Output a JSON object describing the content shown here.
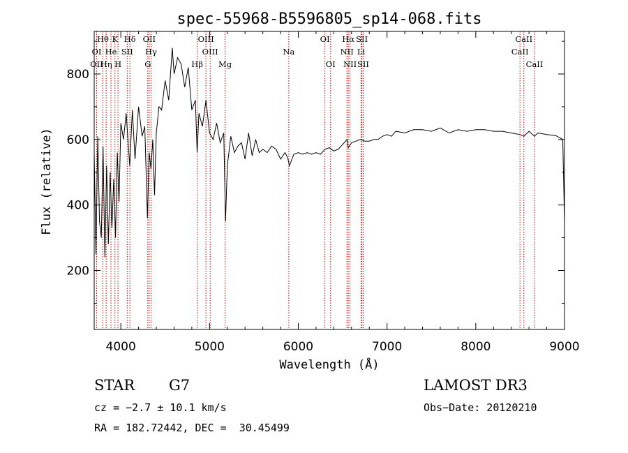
{
  "chart_data": {
    "type": "line",
    "title": "spec-55968-B5596805_sp14-068.fits",
    "xlabel": "Wavelength (Å)",
    "ylabel": "Flux (relative)",
    "xlim": [
      3700,
      9000
    ],
    "ylim": [
      20,
      930
    ],
    "xticks": [
      4000,
      5000,
      6000,
      7000,
      8000,
      9000
    ],
    "yticks": [
      200,
      400,
      600,
      800
    ],
    "series": [
      {
        "name": "spectrum",
        "x": [
          3700,
          3720,
          3740,
          3760,
          3780,
          3800,
          3820,
          3840,
          3860,
          3880,
          3900,
          3920,
          3940,
          3960,
          3980,
          4000,
          4030,
          4060,
          4100,
          4130,
          4160,
          4200,
          4240,
          4270,
          4300,
          4320,
          4340,
          4360,
          4380,
          4400,
          4430,
          4460,
          4500,
          4540,
          4580,
          4600,
          4640,
          4680,
          4720,
          4760,
          4800,
          4840,
          4860,
          4880,
          4920,
          4960,
          5000,
          5040,
          5080,
          5120,
          5160,
          5180,
          5200,
          5240,
          5280,
          5320,
          5360,
          5400,
          5440,
          5480,
          5520,
          5560,
          5600,
          5650,
          5700,
          5750,
          5800,
          5850,
          5880,
          5900,
          5950,
          6000,
          6050,
          6100,
          6150,
          6200,
          6250,
          6300,
          6350,
          6400,
          6450,
          6500,
          6550,
          6563,
          6600,
          6650,
          6700,
          6750,
          6800,
          6850,
          6900,
          6950,
          7000,
          7050,
          7100,
          7200,
          7300,
          7400,
          7500,
          7600,
          7700,
          7800,
          7900,
          8000,
          8100,
          8200,
          8300,
          8400,
          8500,
          8542,
          8600,
          8662,
          8700,
          8800,
          8900,
          8980,
          9000
        ],
        "y": [
          560,
          250,
          610,
          350,
          300,
          580,
          240,
          520,
          280,
          500,
          330,
          480,
          300,
          560,
          410,
          650,
          600,
          680,
          520,
          690,
          540,
          700,
          610,
          640,
          360,
          560,
          510,
          600,
          430,
          620,
          700,
          690,
          780,
          720,
          880,
          800,
          850,
          830,
          760,
          820,
          690,
          720,
          560,
          680,
          640,
          720,
          620,
          600,
          650,
          590,
          620,
          350,
          520,
          610,
          560,
          580,
          590,
          540,
          620,
          550,
          600,
          560,
          570,
          560,
          580,
          570,
          540,
          560,
          545,
          520,
          555,
          560,
          555,
          560,
          555,
          560,
          555,
          570,
          575,
          565,
          570,
          585,
          600,
          575,
          590,
          595,
          600,
          595,
          595,
          600,
          600,
          610,
          615,
          610,
          625,
          620,
          630,
          630,
          625,
          635,
          620,
          630,
          625,
          630,
          630,
          625,
          625,
          620,
          615,
          610,
          625,
          610,
          620,
          615,
          612,
          600,
          350
        ]
      }
    ],
    "line_ids": [
      {
        "label": "Hθ",
        "x": 3798,
        "row": 0
      },
      {
        "label": "K",
        "x": 3934,
        "row": 0
      },
      {
        "label": "Hδ",
        "x": 4102,
        "row": 0
      },
      {
        "label": "OII",
        "x": 4320,
        "row": 0
      },
      {
        "label": "OIII",
        "x": 4959,
        "row": 0
      },
      {
        "label": "OI",
        "x": 6300,
        "row": 0
      },
      {
        "label": "Hα",
        "x": 6563,
        "row": 0
      },
      {
        "label": "SII",
        "x": 6717,
        "row": 0
      },
      {
        "label": "CaII",
        "x": 8542,
        "row": 0
      },
      {
        "label": "OI",
        "x": 3727,
        "row": 1
      },
      {
        "label": "He",
        "x": 3889,
        "row": 1
      },
      {
        "label": "SII",
        "x": 4072,
        "row": 1
      },
      {
        "label": "Hγ",
        "x": 4340,
        "row": 1
      },
      {
        "label": "OIII",
        "x": 5007,
        "row": 1
      },
      {
        "label": "Na",
        "x": 5893,
        "row": 1
      },
      {
        "label": "NII",
        "x": 6548,
        "row": 1
      },
      {
        "label": "Li",
        "x": 6708,
        "row": 1
      },
      {
        "label": "CaII",
        "x": 8498,
        "row": 1
      },
      {
        "label": "OII",
        "x": 3727,
        "row": 2
      },
      {
        "label": "Hη",
        "x": 3835,
        "row": 2
      },
      {
        "label": "H",
        "x": 3968,
        "row": 2
      },
      {
        "label": "G",
        "x": 4304,
        "row": 2
      },
      {
        "label": "Hβ",
        "x": 4861,
        "row": 2
      },
      {
        "label": "Mg",
        "x": 5175,
        "row": 2
      },
      {
        "label": "OI",
        "x": 6364,
        "row": 2
      },
      {
        "label": "NII",
        "x": 6583,
        "row": 2
      },
      {
        "label": "SII",
        "x": 6731,
        "row": 2
      },
      {
        "label": "CaII",
        "x": 8662,
        "row": 2
      }
    ]
  },
  "info": {
    "class": "STAR",
    "subclass": "G7",
    "survey": "LAMOST DR3",
    "cz": "cz = −2.7 ± 10.1 km/s",
    "obs_date": "Obs−Date: 20120210",
    "radec": "RA = 182.72442, DEC =  30.45499"
  },
  "colors": {
    "line_marker": "#c00000",
    "spectrum": "#000000"
  }
}
